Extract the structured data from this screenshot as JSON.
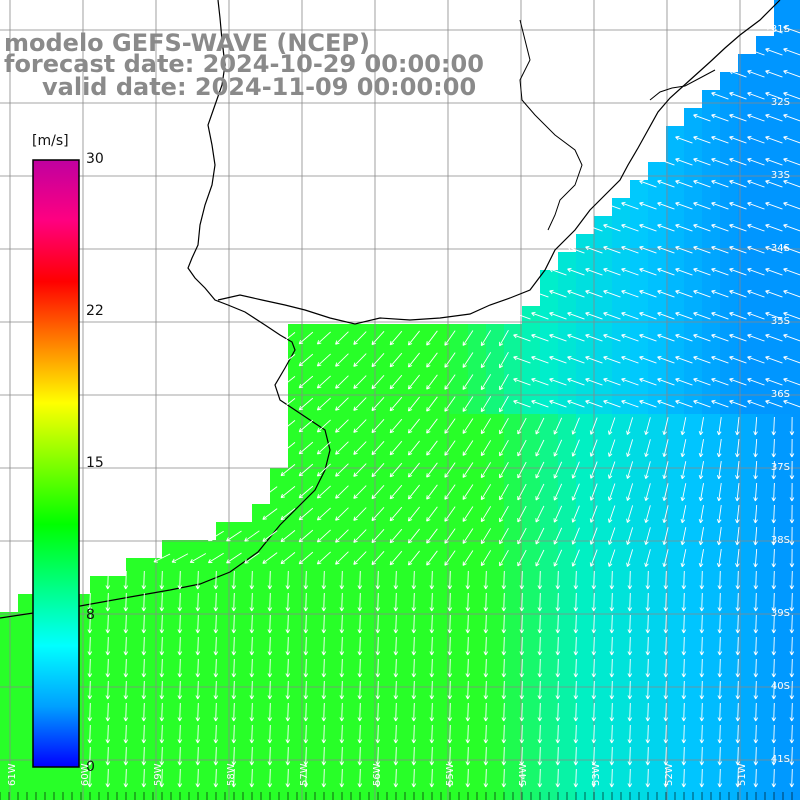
{
  "title": {
    "line1": "modelo GEFS-WAVE (NCEP)",
    "line2": "forecast date: 2024-10-29 00:00:00",
    "line3": "valid date: 2024-11-09 00:00:00"
  },
  "colorbar": {
    "unit": "[m/s]",
    "ticks": [
      "30",
      "22",
      "15",
      "8",
      "0"
    ],
    "stops": [
      "#0000ff",
      "#00a0ff",
      "#00ffff",
      "#00ff80",
      "#00ff00",
      "#80ff00",
      "#ffff00",
      "#ff8000",
      "#ff0000",
      "#ff0080",
      "#c000a0"
    ]
  },
  "map": {
    "land_color": "#ffffff",
    "coast_color": "#000000",
    "grid_color": "#888888",
    "arrow_color": "#ffffff",
    "lat_labels": [
      "31S",
      "32S",
      "33S",
      "34S",
      "35S",
      "36S",
      "37S",
      "38S",
      "39S",
      "40S",
      "41S"
    ],
    "lon_labels": [
      "61W",
      "60W",
      "59W",
      "58W",
      "57W",
      "56W",
      "55W",
      "54W",
      "53W",
      "52W",
      "51W"
    ]
  }
}
